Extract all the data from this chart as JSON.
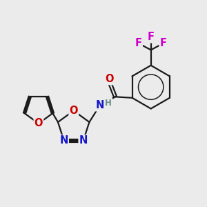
{
  "background_color": "#ebebeb",
  "bond_color": "#1a1a1a",
  "O_color": "#cc0000",
  "N_color": "#1414cc",
  "F_color": "#cc00cc",
  "H_color": "#6e8b8b",
  "line_width": 1.6,
  "dbo": 0.12,
  "font_size_atom": 10.5,
  "font_size_small": 8.5,
  "figsize": [
    3.0,
    3.0
  ],
  "dpi": 100,
  "xlim": [
    0,
    10
  ],
  "ylim": [
    0,
    10
  ]
}
